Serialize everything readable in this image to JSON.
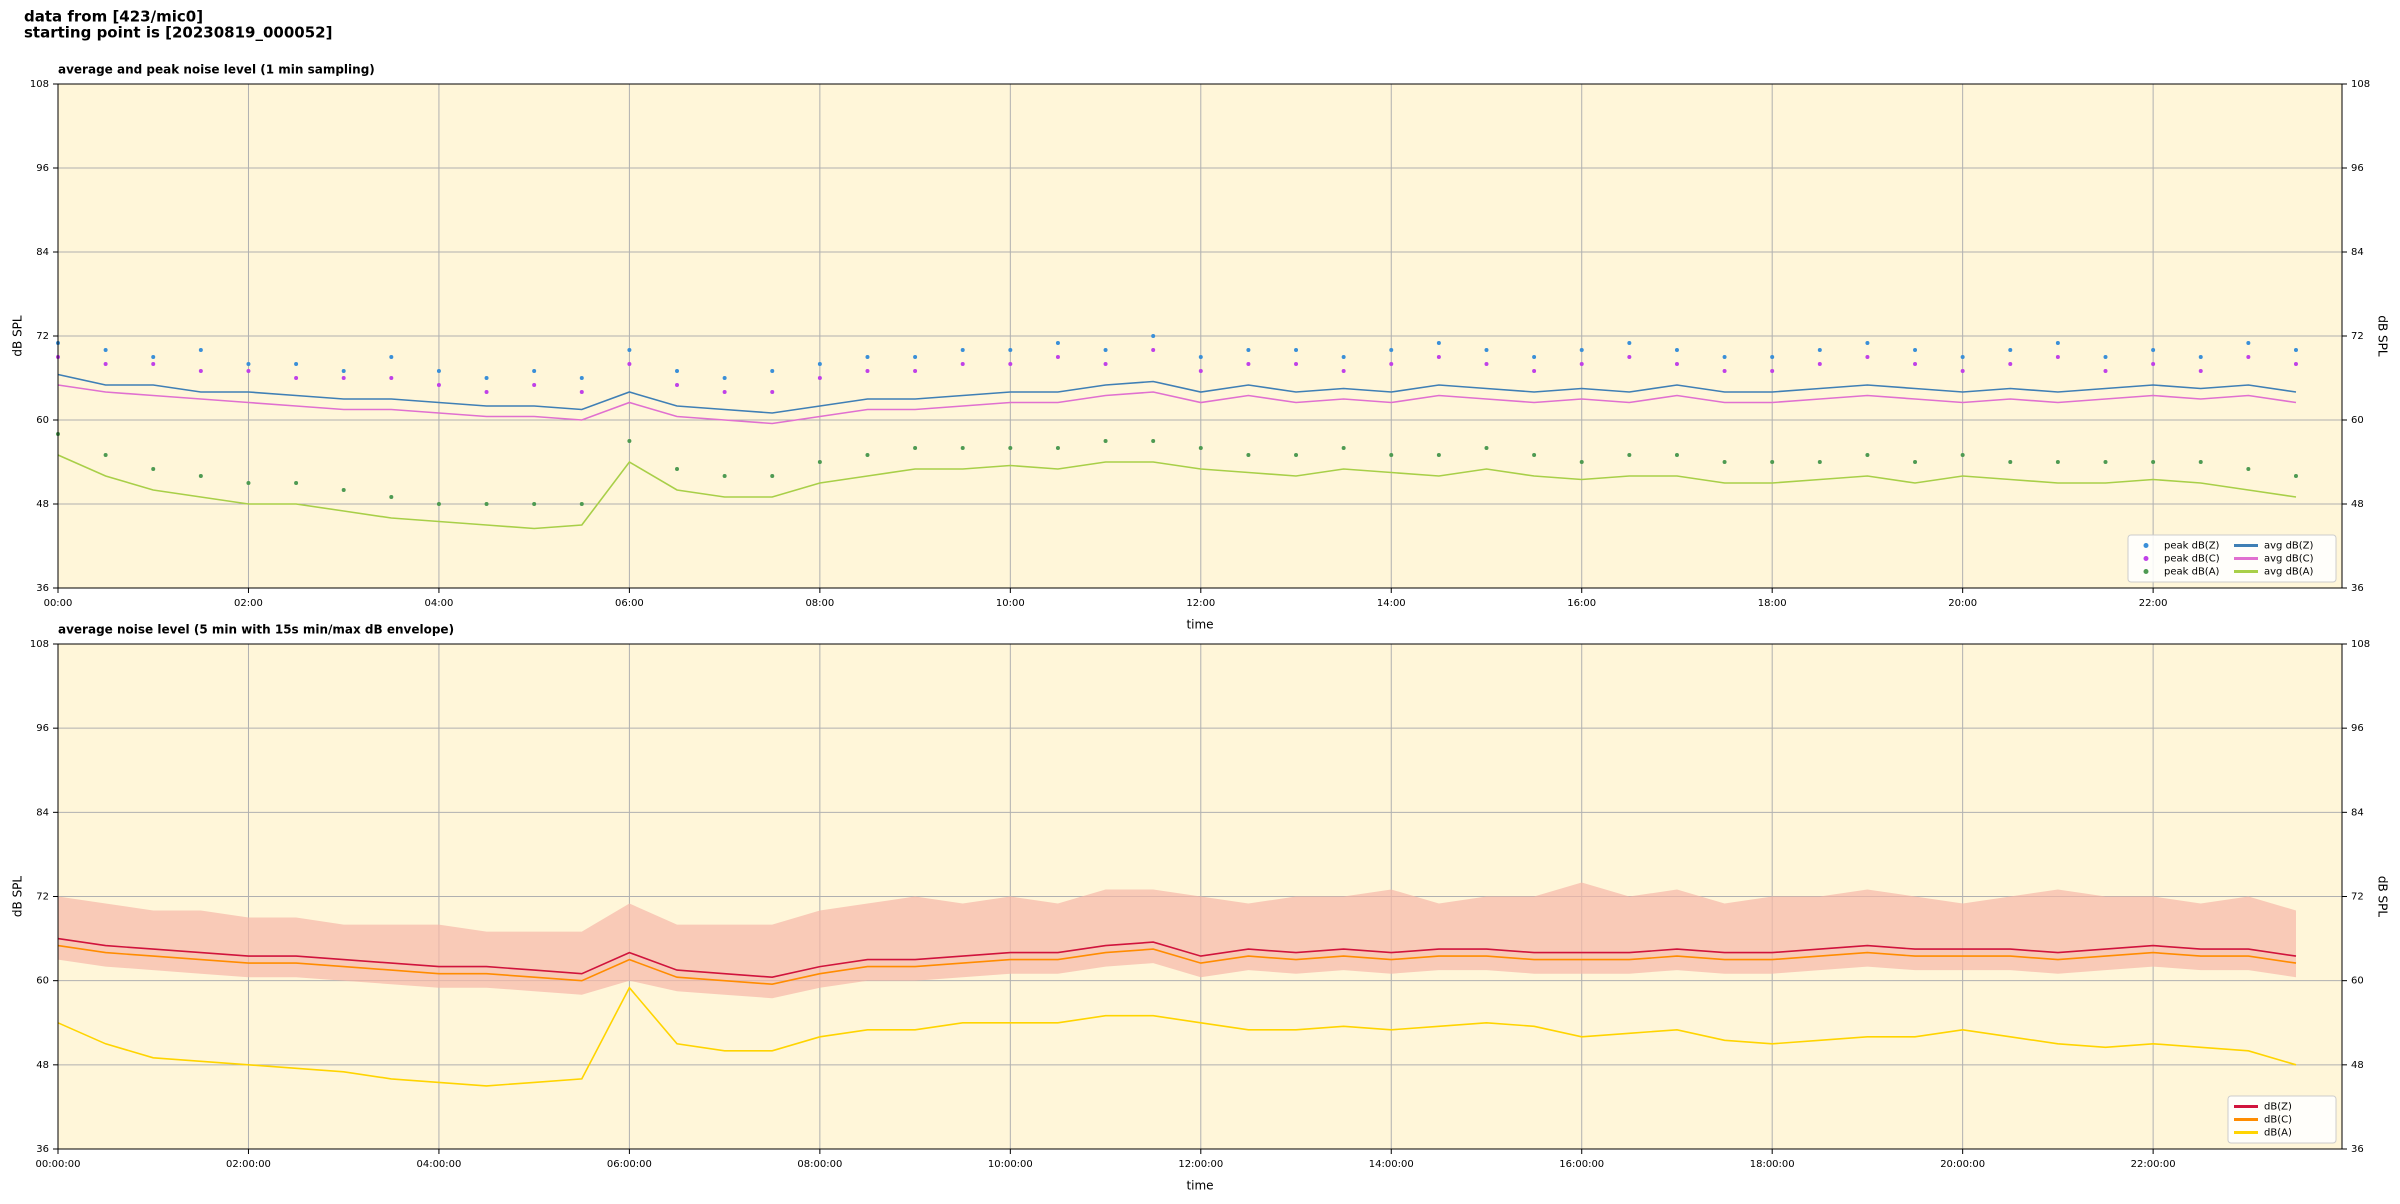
{
  "title_lines": [
    "data from [423/mic0]",
    "starting point is [20230819_000052]"
  ],
  "chart_data": [
    {
      "type": "line",
      "title": "average and peak noise level (1 min sampling)",
      "xlabel": "time",
      "ylabel": "dB SPL",
      "x": [
        "00:00",
        "00:30",
        "01:00",
        "01:30",
        "02:00",
        "02:30",
        "03:00",
        "03:30",
        "04:00",
        "04:30",
        "05:00",
        "05:30",
        "06:00",
        "06:30",
        "07:00",
        "07:30",
        "08:00",
        "08:30",
        "09:00",
        "09:30",
        "10:00",
        "10:30",
        "11:00",
        "11:30",
        "12:00",
        "12:30",
        "13:00",
        "13:30",
        "14:00",
        "14:30",
        "15:00",
        "15:30",
        "16:00",
        "16:30",
        "17:00",
        "17:30",
        "18:00",
        "18:30",
        "19:00",
        "19:30",
        "20:00",
        "20:30",
        "21:00",
        "21:30",
        "22:00",
        "22:30",
        "23:00",
        "23:30"
      ],
      "xlim": [
        "00:00",
        "23:59"
      ],
      "xticks": [
        "00:00",
        "02:00",
        "04:00",
        "06:00",
        "08:00",
        "10:00",
        "12:00",
        "14:00",
        "16:00",
        "18:00",
        "20:00",
        "22:00"
      ],
      "ylim": [
        36,
        108
      ],
      "yticks": [
        36,
        48,
        60,
        72,
        84,
        96,
        108
      ],
      "grid": true,
      "background": "#fff6d9",
      "legend": "lower right",
      "legend_columns": 2,
      "series": [
        {
          "name": "peak dB(Z)",
          "style": "dots",
          "color": "#3a8fd8",
          "values": [
            71,
            70,
            69,
            70,
            68,
            68,
            67,
            69,
            67,
            66,
            67,
            66,
            70,
            67,
            66,
            67,
            68,
            69,
            69,
            70,
            70,
            71,
            70,
            72,
            69,
            70,
            70,
            69,
            70,
            71,
            70,
            69,
            70,
            71,
            70,
            69,
            69,
            70,
            71,
            70,
            69,
            70,
            71,
            69,
            70,
            69,
            71,
            70
          ]
        },
        {
          "name": "peak dB(C)",
          "style": "dots",
          "color": "#c040e8",
          "values": [
            69,
            68,
            68,
            67,
            67,
            66,
            66,
            66,
            65,
            64,
            65,
            64,
            68,
            65,
            64,
            64,
            66,
            67,
            67,
            68,
            68,
            69,
            68,
            70,
            67,
            68,
            68,
            67,
            68,
            69,
            68,
            67,
            68,
            69,
            68,
            67,
            67,
            68,
            69,
            68,
            67,
            68,
            69,
            67,
            68,
            67,
            69,
            68
          ]
        },
        {
          "name": "peak dB(A)",
          "style": "dots",
          "color": "#4e9a52",
          "values": [
            58,
            55,
            53,
            52,
            51,
            51,
            50,
            49,
            48,
            48,
            48,
            48,
            57,
            53,
            52,
            52,
            54,
            55,
            56,
            56,
            56,
            56,
            57,
            57,
            56,
            55,
            55,
            56,
            55,
            55,
            56,
            55,
            54,
            55,
            55,
            54,
            54,
            54,
            55,
            54,
            55,
            54,
            54,
            54,
            54,
            54,
            53,
            52
          ]
        },
        {
          "name": "avg dB(Z)",
          "style": "line",
          "color": "#3f7fb5",
          "values": [
            66.5,
            65,
            65,
            64,
            64,
            63.5,
            63,
            63,
            62.5,
            62,
            62,
            61.5,
            64,
            62,
            61.5,
            61,
            62,
            63,
            63,
            63.5,
            64,
            64,
            65,
            65.5,
            64,
            65,
            64,
            64.5,
            64,
            65,
            64.5,
            64,
            64.5,
            64,
            65,
            64,
            64,
            64.5,
            65,
            64.5,
            64,
            64.5,
            64,
            64.5,
            65,
            64.5,
            65,
            64
          ]
        },
        {
          "name": "avg dB(C)",
          "style": "line",
          "color": "#e070d0",
          "values": [
            65,
            64,
            63.5,
            63,
            62.5,
            62,
            61.5,
            61.5,
            61,
            60.5,
            60.5,
            60,
            62.5,
            60.5,
            60,
            59.5,
            60.5,
            61.5,
            61.5,
            62,
            62.5,
            62.5,
            63.5,
            64,
            62.5,
            63.5,
            62.5,
            63,
            62.5,
            63.5,
            63,
            62.5,
            63,
            62.5,
            63.5,
            62.5,
            62.5,
            63,
            63.5,
            63,
            62.5,
            63,
            62.5,
            63,
            63.5,
            63,
            63.5,
            62.5
          ]
        },
        {
          "name": "avg dB(A)",
          "style": "line",
          "color": "#a8cf48",
          "values": [
            55,
            52,
            50,
            49,
            48,
            48,
            47,
            46,
            45.5,
            45,
            44.5,
            45,
            54,
            50,
            49,
            49,
            51,
            52,
            53,
            53,
            53.5,
            53,
            54,
            54,
            53,
            52.5,
            52,
            53,
            52.5,
            52,
            53,
            52,
            51.5,
            52,
            52,
            51,
            51,
            51.5,
            52,
            51,
            52,
            51.5,
            51,
            51,
            51.5,
            51,
            50,
            49
          ]
        }
      ]
    },
    {
      "type": "line",
      "title": "average noise level (5 min with 15s min/max dB envelope)",
      "xlabel": "time",
      "ylabel": "dB SPL",
      "x": [
        "00:00:00",
        "00:30:00",
        "01:00:00",
        "01:30:00",
        "02:00:00",
        "02:30:00",
        "03:00:00",
        "03:30:00",
        "04:00:00",
        "04:30:00",
        "05:00:00",
        "05:30:00",
        "06:00:00",
        "06:30:00",
        "07:00:00",
        "07:30:00",
        "08:00:00",
        "08:30:00",
        "09:00:00",
        "09:30:00",
        "10:00:00",
        "10:30:00",
        "11:00:00",
        "11:30:00",
        "12:00:00",
        "12:30:00",
        "13:00:00",
        "13:30:00",
        "14:00:00",
        "14:30:00",
        "15:00:00",
        "15:30:00",
        "16:00:00",
        "16:30:00",
        "17:00:00",
        "17:30:00",
        "18:00:00",
        "18:30:00",
        "19:00:00",
        "19:30:00",
        "20:00:00",
        "20:30:00",
        "21:00:00",
        "21:30:00",
        "22:00:00",
        "22:30:00",
        "23:00:00",
        "23:30:00"
      ],
      "xlim": [
        "00:00:00",
        "23:59:00"
      ],
      "xticks": [
        "00:00:00",
        "02:00:00",
        "04:00:00",
        "06:00:00",
        "08:00:00",
        "10:00:00",
        "12:00:00",
        "14:00:00",
        "16:00:00",
        "18:00:00",
        "20:00:00",
        "22:00:00"
      ],
      "ylim": [
        36,
        108
      ],
      "yticks": [
        36,
        48,
        60,
        72,
        84,
        96,
        108
      ],
      "grid": true,
      "background": "#fff6d9",
      "legend": "lower right",
      "legend_columns": 1,
      "series": [
        {
          "name": "dB(Z)",
          "style": "line",
          "color": "#d0143c",
          "envelope_color": "#f6b8a8",
          "values": [
            66,
            65,
            64.5,
            64,
            63.5,
            63.5,
            63,
            62.5,
            62,
            62,
            61.5,
            61,
            64,
            61.5,
            61,
            60.5,
            62,
            63,
            63,
            63.5,
            64,
            64,
            65,
            65.5,
            63.5,
            64.5,
            64,
            64.5,
            64,
            64.5,
            64.5,
            64,
            64,
            64,
            64.5,
            64,
            64,
            64.5,
            65,
            64.5,
            64.5,
            64.5,
            64,
            64.5,
            65,
            64.5,
            64.5,
            63.5
          ],
          "max_values": [
            72,
            71,
            70,
            70,
            69,
            69,
            68,
            68,
            68,
            67,
            67,
            67,
            71,
            68,
            68,
            68,
            70,
            71,
            72,
            71,
            72,
            71,
            73,
            73,
            72,
            71,
            72,
            72,
            73,
            71,
            72,
            72,
            74,
            72,
            73,
            71,
            72,
            72,
            73,
            72,
            71,
            72,
            73,
            72,
            72,
            71,
            72,
            70
          ],
          "min_values": [
            63,
            62,
            61.5,
            61,
            60.5,
            60.5,
            60,
            59.5,
            59,
            59,
            58.5,
            58,
            60,
            58.5,
            58,
            57.5,
            59,
            60,
            60,
            60.5,
            61,
            61,
            62,
            62.5,
            60.5,
            61.5,
            61,
            61.5,
            61,
            61.5,
            61.5,
            61,
            61,
            61,
            61.5,
            61,
            61,
            61.5,
            62,
            61.5,
            61.5,
            61.5,
            61,
            61.5,
            62,
            61.5,
            61.5,
            60.5
          ]
        },
        {
          "name": "dB(C)",
          "style": "line",
          "color": "#ff8c00",
          "values": [
            65,
            64,
            63.5,
            63,
            62.5,
            62.5,
            62,
            61.5,
            61,
            61,
            60.5,
            60,
            63,
            60.5,
            60,
            59.5,
            61,
            62,
            62,
            62.5,
            63,
            63,
            64,
            64.5,
            62.5,
            63.5,
            63,
            63.5,
            63,
            63.5,
            63.5,
            63,
            63,
            63,
            63.5,
            63,
            63,
            63.5,
            64,
            63.5,
            63.5,
            63.5,
            63,
            63.5,
            64,
            63.5,
            63.5,
            62.5
          ]
        },
        {
          "name": "dB(A)",
          "style": "line",
          "color": "#ffd400",
          "values": [
            54,
            51,
            49,
            48.5,
            48,
            47.5,
            47,
            46,
            45.5,
            45,
            45.5,
            46,
            59,
            51,
            50,
            50,
            52,
            53,
            53,
            54,
            54,
            54,
            55,
            55,
            54,
            53,
            53,
            53.5,
            53,
            53.5,
            54,
            53.5,
            52,
            52.5,
            53,
            51.5,
            51,
            51.5,
            52,
            52,
            53,
            52,
            51,
            50.5,
            51,
            50.5,
            50,
            48
          ]
        }
      ]
    }
  ]
}
